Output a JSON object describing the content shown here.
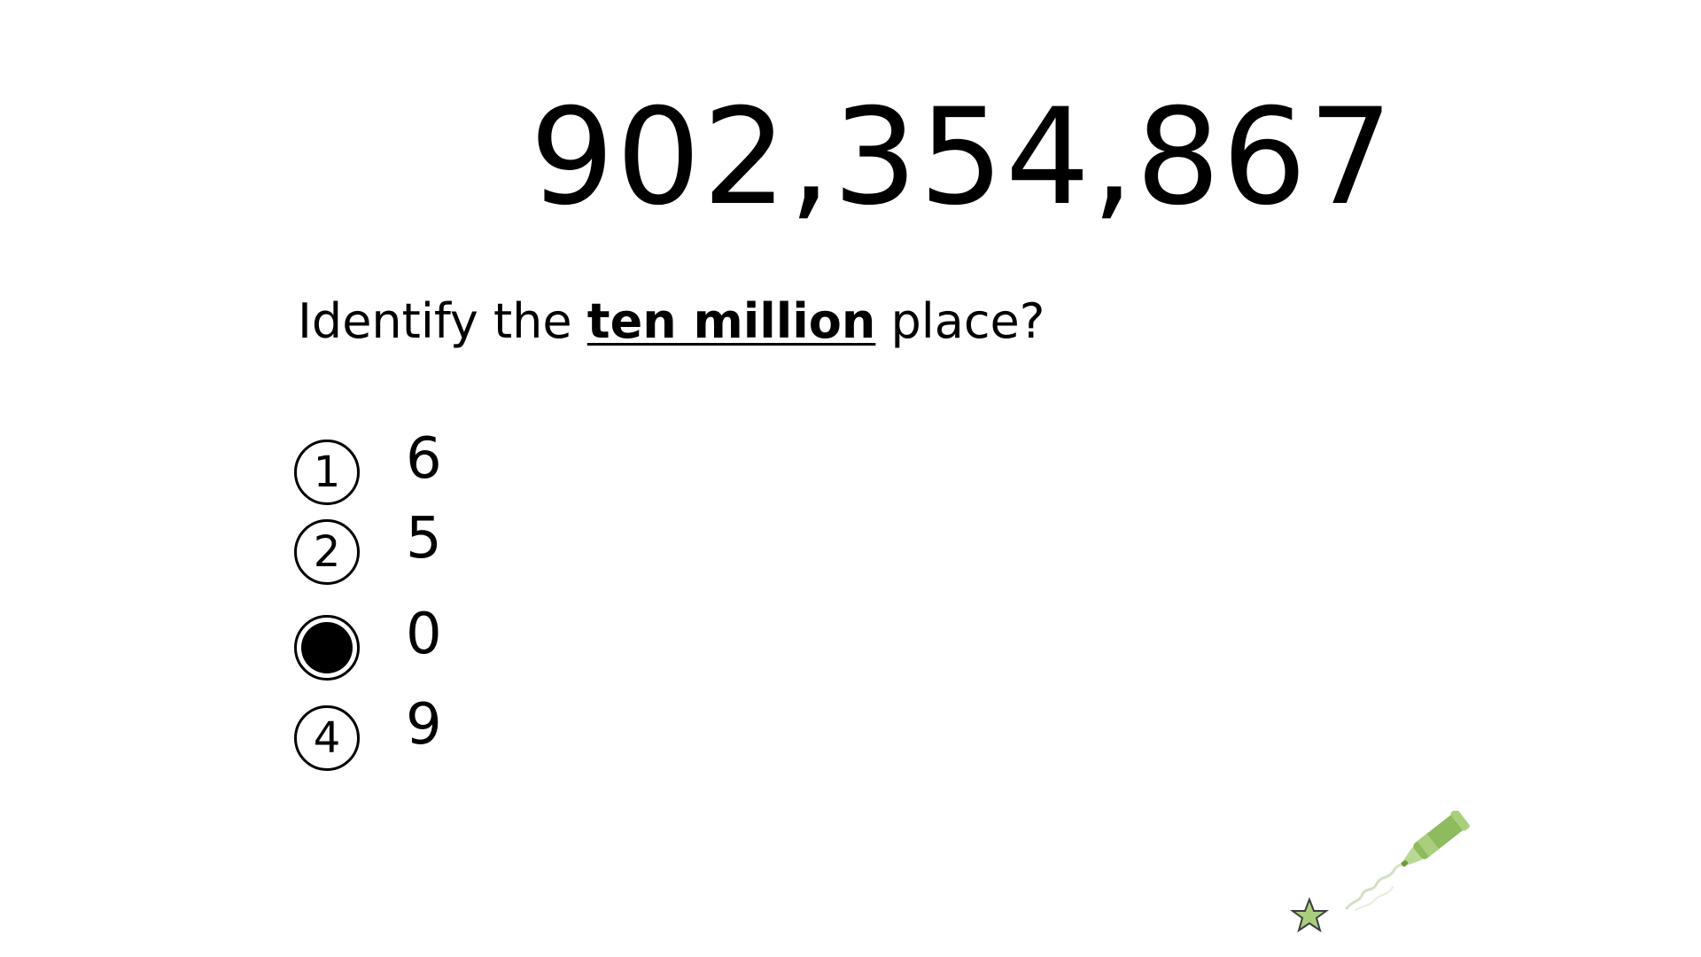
{
  "slide": {
    "number": "902,354,867",
    "question": {
      "prefix": "Identify the ",
      "emphasis": "ten million",
      "suffix": " place?"
    },
    "options": [
      {
        "marker": "1",
        "value": "6",
        "selected": false
      },
      {
        "marker": "2",
        "value": "5",
        "selected": false
      },
      {
        "marker": "3",
        "value": "0",
        "selected": true
      },
      {
        "marker": "4",
        "value": "9",
        "selected": false
      }
    ],
    "decoration_icons": [
      "star-icon",
      "marker-pen-icon"
    ],
    "colors": {
      "text": "#000000",
      "star_fill": "#a9cf7d",
      "pen_green": "#8dbb5d"
    }
  }
}
